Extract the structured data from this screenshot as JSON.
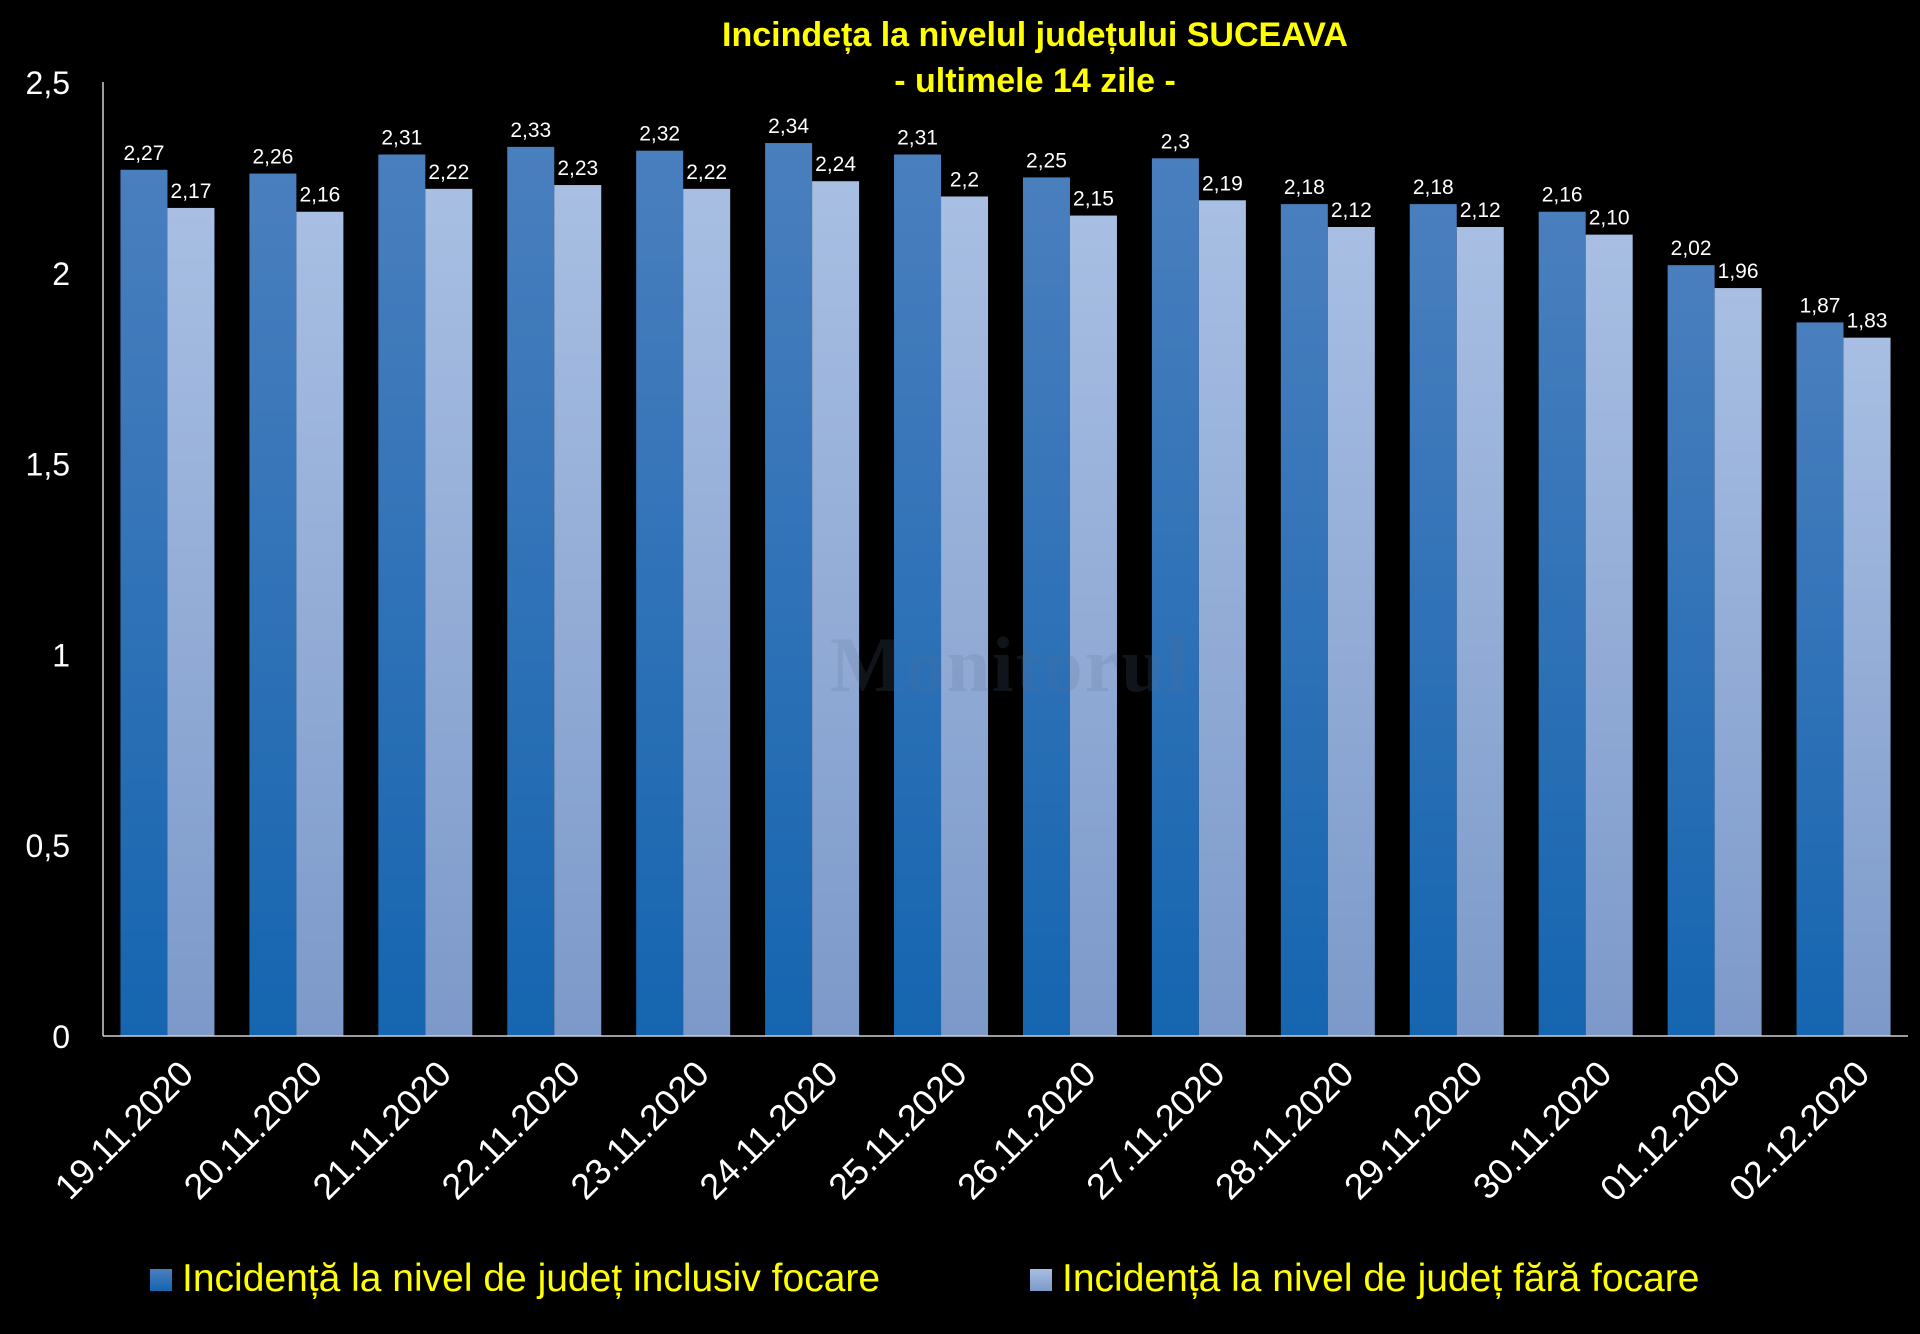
{
  "chart_data": {
    "type": "bar",
    "title": "Incindeța la nivelul județului SUCEAVA",
    "subtitle": "- ultimele 14 zile -",
    "categories": [
      "19.11.2020",
      "20.11.2020",
      "21.11.2020",
      "22.11.2020",
      "23.11.2020",
      "24.11.2020",
      "25.11.2020",
      "26.11.2020",
      "27.11.2020",
      "28.11.2020",
      "29.11.2020",
      "30.11.2020",
      "01.12.2020",
      "02.12.2020"
    ],
    "series": [
      {
        "name": "Incidență la nivel de județ inclusiv focare",
        "values": [
          2.27,
          2.26,
          2.31,
          2.33,
          2.32,
          2.34,
          2.31,
          2.25,
          2.3,
          2.18,
          2.18,
          2.16,
          2.02,
          1.87
        ],
        "labels": [
          "2,27",
          "2,26",
          "2,31",
          "2,33",
          "2,32",
          "2,34",
          "2,31",
          "2,25",
          "2,3",
          "2,18",
          "2,18",
          "2,16",
          "2,02",
          "1,87"
        ],
        "color": "#2a6cb4"
      },
      {
        "name": "Incidență la nivel de județ fără focare",
        "values": [
          2.17,
          2.16,
          2.22,
          2.23,
          2.22,
          2.24,
          2.2,
          2.15,
          2.19,
          2.12,
          2.12,
          2.1,
          1.96,
          1.83
        ],
        "labels": [
          "2,17",
          "2,16",
          "2,22",
          "2,23",
          "2,22",
          "2,24",
          "2,2",
          "2,15",
          "2,19",
          "2,12",
          "2,12",
          "2,10",
          "1,96",
          "1,83"
        ],
        "color": "#9ab3dc"
      }
    ],
    "ylim": [
      0,
      2.5
    ],
    "yticks": [
      "0",
      "0,5",
      "1",
      "1,5",
      "2",
      "2,5"
    ],
    "ytick_values": [
      0,
      0.5,
      1,
      1.5,
      2,
      2.5
    ],
    "grid": false,
    "legend_position": "bottom",
    "title_color": "#ffff00",
    "legend_text_color": "#ffff00",
    "axis_text_color": "#ffffff",
    "label_text_color": "#ffffff",
    "background_color": "#000000"
  },
  "watermark": "Monitorul"
}
